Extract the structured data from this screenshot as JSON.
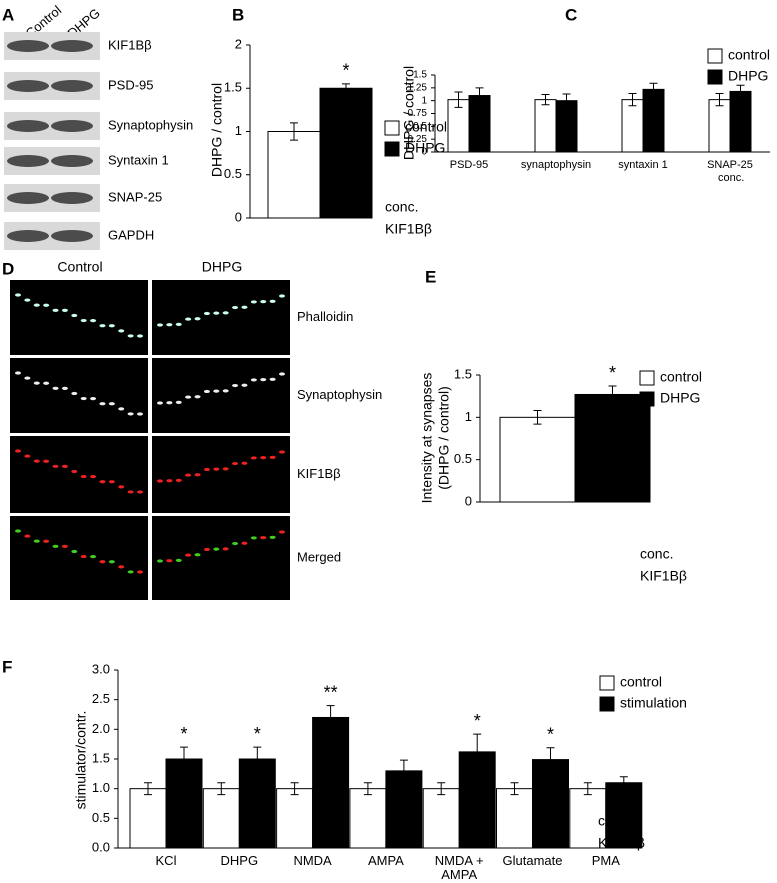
{
  "panel_labels": [
    "A",
    "B",
    "C",
    "D",
    "E",
    "F"
  ],
  "blot": {
    "lanes": [
      "Control",
      "DHPG"
    ],
    "bands": [
      "KIF1Bβ",
      "PSD-95",
      "Synaptophysin",
      "Syntaxin 1",
      "SNAP-25",
      "GAPDH"
    ]
  },
  "micrographs": {
    "columns": [
      "Control",
      "DHPG"
    ],
    "rows": [
      "Phalloidin",
      "Synaptophysin",
      "KIF1Bβ",
      "Merged"
    ]
  },
  "chart_data": [
    {
      "type": "bar",
      "ylabel": "DHPG / control",
      "ylim": [
        0,
        2
      ],
      "yticks": [
        0,
        0.5,
        1,
        1.5,
        2
      ],
      "series": [
        {
          "name": "control",
          "color": "#ffffff",
          "values": [
            1
          ],
          "errors": [
            0.1
          ]
        },
        {
          "name": "DHPG",
          "color": "#000000",
          "values": [
            1.5
          ],
          "errors": [
            0.05
          ]
        }
      ],
      "annotations": [
        "*"
      ],
      "note": [
        "conc.",
        "KIF1Bβ"
      ]
    },
    {
      "type": "bar",
      "ylabel": "DHPG / control",
      "ylim": [
        0,
        1.5
      ],
      "yticks": [
        0,
        0.25,
        0.5,
        0.75,
        1,
        1.25,
        1.5
      ],
      "categories": [
        "PSD-95",
        "synaptophysin",
        "syntaxin 1",
        "SNAP-25"
      ],
      "series": [
        {
          "name": "control",
          "color": "#ffffff",
          "values": [
            1.02,
            1.02,
            1.02,
            1.02
          ],
          "errors": [
            0.15,
            0.1,
            0.12,
            0.12
          ]
        },
        {
          "name": "DHPG",
          "color": "#000000",
          "values": [
            1.1,
            1.0,
            1.22,
            1.18
          ],
          "errors": [
            0.15,
            0.13,
            0.12,
            0.12
          ]
        }
      ],
      "note": [
        "conc."
      ]
    },
    {
      "type": "bar",
      "ylabel": [
        "Intensity at synapses",
        "(DHPG / control)"
      ],
      "ylim": [
        0,
        1.5
      ],
      "yticks": [
        0,
        0.5,
        1,
        1.5
      ],
      "series": [
        {
          "name": "control",
          "color": "#ffffff",
          "values": [
            1
          ],
          "errors": [
            0.08
          ]
        },
        {
          "name": "DHPG",
          "color": "#000000",
          "values": [
            1.27
          ],
          "errors": [
            0.1
          ]
        }
      ],
      "annotations": [
        "*"
      ],
      "note": [
        "conc.",
        "KIF1Bβ"
      ]
    },
    {
      "type": "bar",
      "ylabel": "stimulator/contr.",
      "ylim": [
        0,
        3
      ],
      "yticks": [
        {
          "value": 0,
          "label": "0.0"
        },
        {
          "value": 0.5,
          "label": "0.5"
        },
        {
          "value": 1,
          "label": "1.0"
        },
        {
          "value": 1.5,
          "label": "1.5"
        },
        {
          "value": 2,
          "label": "2.0"
        },
        {
          "value": 2.5,
          "label": "2.5"
        },
        {
          "value": 3,
          "label": "3.0"
        }
      ],
      "categories": [
        "KCl",
        "DHPG",
        "NMDA",
        "AMPA",
        "NMDA + AMPA",
        "Glutamate",
        "PMA"
      ],
      "series": [
        {
          "name": "control",
          "color": "#ffffff",
          "values": [
            1,
            1,
            1,
            1,
            1,
            1,
            1
          ],
          "errors": [
            0.1,
            0.1,
            0.1,
            0.1,
            0.1,
            0.1,
            0.1
          ]
        },
        {
          "name": "stimulation",
          "color": "#000000",
          "values": [
            1.5,
            1.5,
            2.2,
            1.3,
            1.62,
            1.49,
            1.1
          ],
          "errors": [
            0.2,
            0.2,
            0.2,
            0.18,
            0.3,
            0.2,
            0.1
          ]
        }
      ],
      "annotations": [
        "*",
        "*",
        "**",
        null,
        "*",
        "*",
        null
      ],
      "note": [
        "conc.",
        "KIF1Bβ"
      ]
    }
  ]
}
